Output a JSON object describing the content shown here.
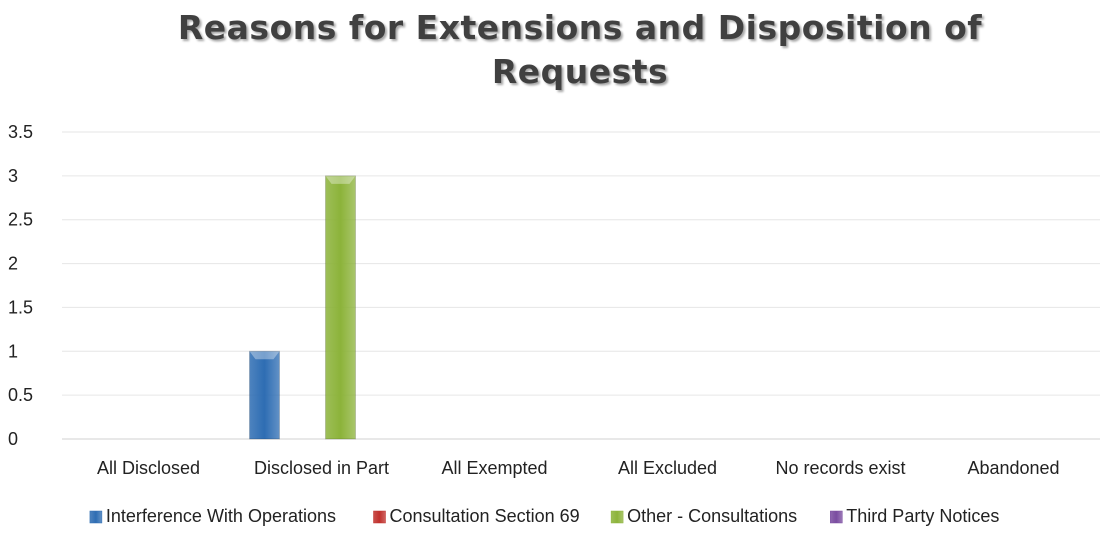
{
  "chart_data": {
    "type": "bar",
    "title": "Reasons for Extensions and Disposition of Requests",
    "categories": [
      "All Disclosed",
      "Disclosed in Part",
      "All Exempted",
      "All Excluded",
      "No records exist",
      "Abandoned"
    ],
    "series": [
      {
        "name": "Interference With Operations",
        "color": "#2e6db3",
        "values": [
          0,
          1,
          0,
          0,
          0,
          0
        ]
      },
      {
        "name": "Consultation Section 69",
        "color": "#c0302c",
        "values": [
          0,
          0,
          0,
          0,
          0,
          0
        ]
      },
      {
        "name": "Other - Consultations",
        "color": "#8cb33a",
        "values": [
          0,
          3,
          0,
          0,
          0,
          0
        ]
      },
      {
        "name": "Third Party Notices",
        "color": "#7a4ca0",
        "values": [
          0,
          0,
          0,
          0,
          0,
          0
        ]
      }
    ],
    "yticks": [
      "0",
      "0.5",
      "1",
      "1.5",
      "2",
      "2.5",
      "3",
      "3.5"
    ],
    "ylim": [
      0,
      3.5
    ],
    "grid": true,
    "legend_position": "bottom"
  }
}
